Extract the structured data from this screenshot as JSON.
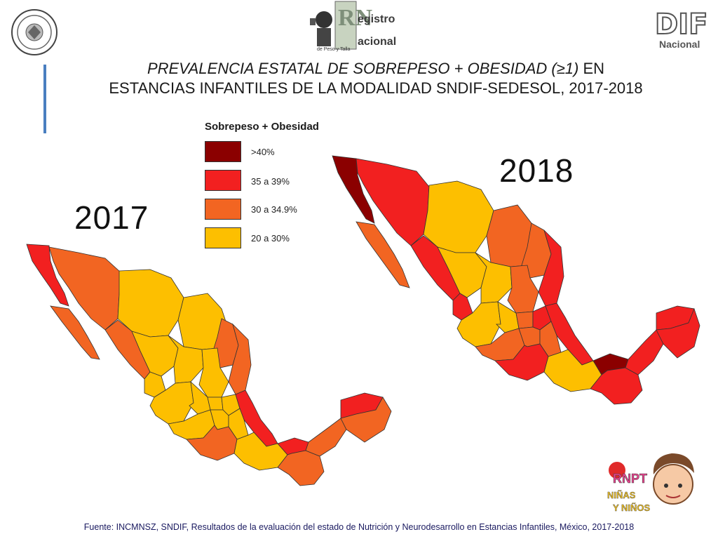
{
  "header": {
    "title_line1_italic": "PREVALENCIA ESTATAL DE SOBREPESO + OBESIDAD (≥1)",
    "title_line1_rest": " EN",
    "title_line2": "ESTANCIAS INFANTILES DE LA MODALIDAD SNDIF-SEDESOL, 2017-2018",
    "logo_registro_line1": "egistro",
    "logo_registro_line2": "acional",
    "logo_registro_letters": "RN",
    "logo_registro_sub": "de Peso y Talla",
    "logo_dif": "DIF",
    "logo_dif_sub": "Nacional",
    "logo_rnpt": "RNPT",
    "logo_rnpt_line2": "NIÑAS",
    "logo_rnpt_line3": "Y NIÑOS"
  },
  "legend": {
    "title": "Sobrepeso + Obesidad",
    "items": [
      {
        "label": ">40%",
        "color": "#8b0000"
      },
      {
        "label": "35 a 39%",
        "color": "#f22020"
      },
      {
        "label": "30 a 34.9%",
        "color": "#f26522"
      },
      {
        "label": "20 a 30%",
        "color": "#fdbf00"
      }
    ]
  },
  "maps": {
    "left_year": "2017",
    "right_year": "2018"
  },
  "footer": {
    "source": "Fuente: INCMNSZ, SNDIF, Resultados de la evaluación del estado de Nutrición y Neurodesarrollo en Estancias Infantiles, México, 2017-2018"
  }
}
